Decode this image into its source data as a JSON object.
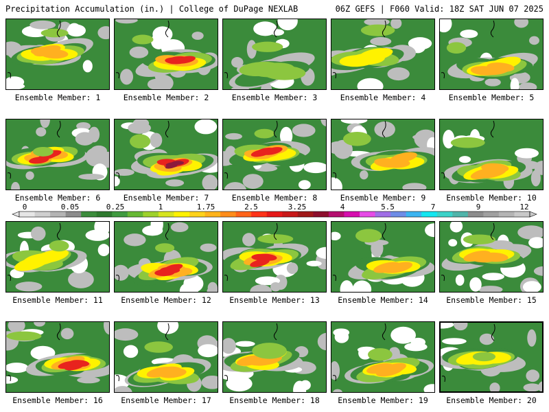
{
  "header": {
    "title_left": "Precipitation Accumulation (in.) | College of DuPage NEXLAB",
    "title_right": "06Z GEFS | F060 Valid: 18Z SAT JUN 07 2025"
  },
  "colorbar": {
    "tick_labels": [
      "0",
      "0.05",
      "0.25",
      "1",
      "1.75",
      "2.5",
      "3.25",
      "4",
      "5.5",
      "7",
      "9",
      "12"
    ],
    "colors": [
      "#e6e6e6",
      "#cfcfcf",
      "#b4b4b4",
      "#8c8c8c",
      "#3c8c3c",
      "#2f7a2f",
      "#3f9a3f",
      "#66b833",
      "#9ed12b",
      "#d6e41f",
      "#fff200",
      "#ffd21a",
      "#ffb31a",
      "#ff8c1a",
      "#ff6319",
      "#ff3419",
      "#e61919",
      "#c81919",
      "#a01919",
      "#8c0f2d",
      "#b40f6e",
      "#d60fae",
      "#e64be6",
      "#a06ee6",
      "#6e8ce6",
      "#3cb4f0",
      "#14e6f0",
      "#3cd2c8",
      "#50b4aa",
      "#8c8c8c",
      "#a0a0a0",
      "#b4b4b4",
      "#c8c8c8"
    ]
  },
  "map_colors": {
    "none": "#ffffff",
    "trace": "#bdbdbd",
    "light": "#3b8b3b",
    "moderate": "#8cc63f",
    "heavy": "#fff200",
    "very_heavy": "#ffb020",
    "extreme": "#e8231e",
    "max": "#8c1a3c"
  },
  "members": [
    {
      "label": "Ensemble Member: 1",
      "intensity": 0.82
    },
    {
      "label": "Ensemble Member: 2",
      "intensity": 0.85
    },
    {
      "label": "Ensemble Member: 3",
      "intensity": 0.62
    },
    {
      "label": "Ensemble Member: 4",
      "intensity": 0.7
    },
    {
      "label": "Ensemble Member: 5",
      "intensity": 0.78
    },
    {
      "label": "Ensemble Member: 6",
      "intensity": 0.86
    },
    {
      "label": "Ensemble Member: 7",
      "intensity": 0.95
    },
    {
      "label": "Ensemble Member: 8",
      "intensity": 0.84
    },
    {
      "label": "Ensemble Member: 9",
      "intensity": 0.8
    },
    {
      "label": "Ensemble Member: 10",
      "intensity": 0.78
    },
    {
      "label": "Ensemble Member: 11",
      "intensity": 0.72
    },
    {
      "label": "Ensemble Member: 12",
      "intensity": 0.88
    },
    {
      "label": "Ensemble Member: 13",
      "intensity": 0.86
    },
    {
      "label": "Ensemble Member: 14",
      "intensity": 0.8
    },
    {
      "label": "Ensemble Member: 15",
      "intensity": 0.82
    },
    {
      "label": "Ensemble Member: 16",
      "intensity": 0.9
    },
    {
      "label": "Ensemble Member: 17",
      "intensity": 0.78
    },
    {
      "label": "Ensemble Member: 18",
      "intensity": 0.76
    },
    {
      "label": "Ensemble Member: 19",
      "intensity": 0.74
    },
    {
      "label": "Ensemble Member: 20",
      "intensity": 0.68
    }
  ]
}
